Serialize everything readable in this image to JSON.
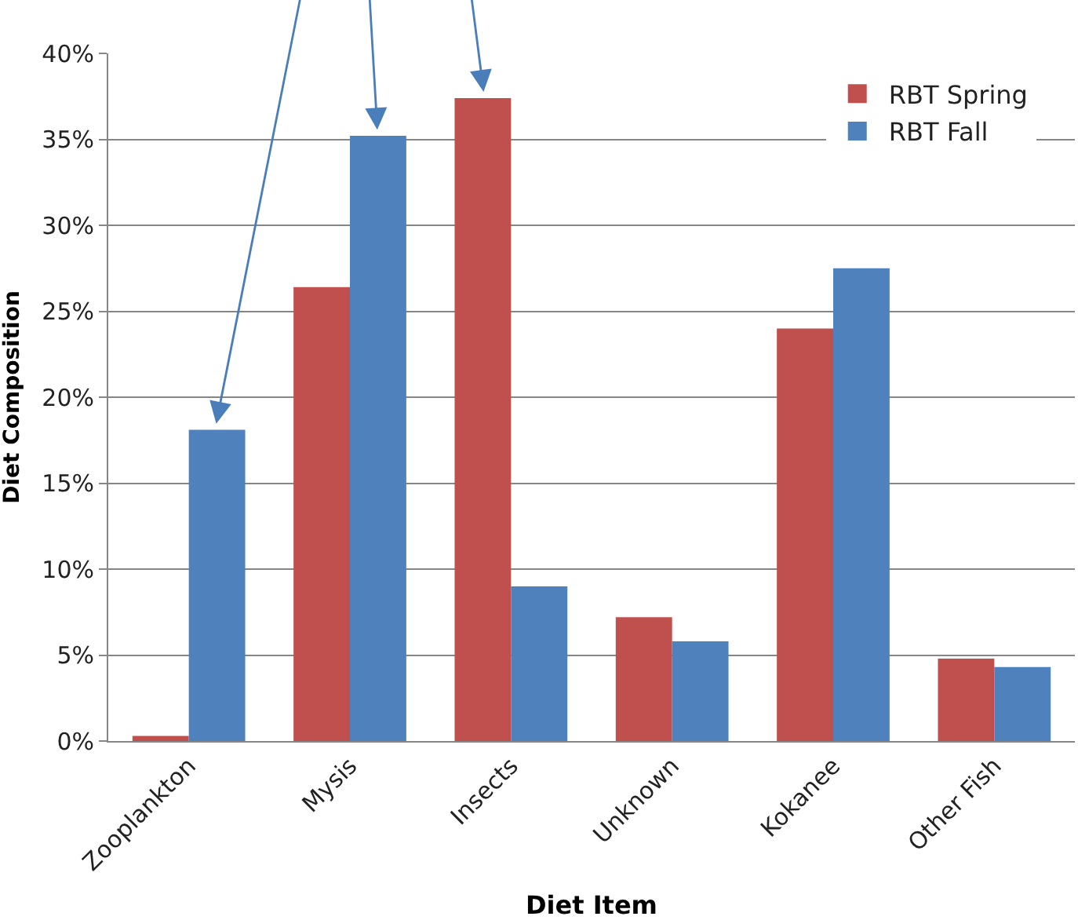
{
  "chart_data": {
    "type": "bar",
    "xlabel": "Diet Item",
    "ylabel": "Diet Composition",
    "categories": [
      "Zooplankton",
      "Mysis",
      "Insects",
      "Unknown",
      "Kokanee",
      "Other Fish"
    ],
    "series": [
      {
        "name": "RBT Spring",
        "color": "#c0504d",
        "values": [
          0.3,
          26.4,
          37.4,
          7.2,
          24.0,
          4.8
        ]
      },
      {
        "name": "RBT Fall",
        "color": "#4f81bd",
        "values": [
          18.1,
          35.2,
          9.0,
          5.8,
          27.5,
          4.3
        ]
      }
    ],
    "ylim": [
      0,
      40
    ],
    "yticks": [
      {
        "value": 0,
        "label": "0%"
      },
      {
        "value": 5,
        "label": "5%"
      },
      {
        "value": 10,
        "label": "10%"
      },
      {
        "value": 15,
        "label": "15%"
      },
      {
        "value": 20,
        "label": "20%"
      },
      {
        "value": 25,
        "label": "25%"
      },
      {
        "value": 30,
        "label": "30%"
      },
      {
        "value": 35,
        "label": "35%"
      },
      {
        "value": 40,
        "label": "40%"
      }
    ],
    "grid": "y",
    "legend": "top right"
  }
}
